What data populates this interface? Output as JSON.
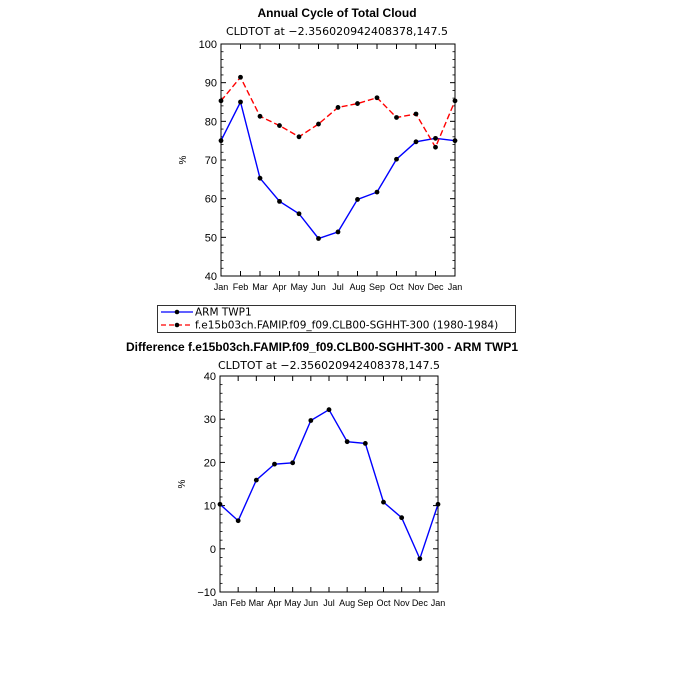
{
  "chart_data": [
    {
      "type": "line",
      "title": "Annual Cycle of Total Cloud",
      "subtitle": "CLDTOT at −2.356020942408378,147.5",
      "ylabel": "%",
      "ylim": [
        40,
        100
      ],
      "yticks": [
        40,
        50,
        60,
        70,
        80,
        90,
        100
      ],
      "categories": [
        "Jan",
        "Feb",
        "Mar",
        "Apr",
        "May",
        "Jun",
        "Jul",
        "Aug",
        "Sep",
        "Oct",
        "Nov",
        "Dec",
        "Jan"
      ],
      "series": [
        {
          "name": "ARM TWP1",
          "color": "#0000ff",
          "dash": "solid",
          "values": [
            75.0,
            85.0,
            65.3,
            59.3,
            56.1,
            49.7,
            51.4,
            59.8,
            61.7,
            70.2,
            74.7,
            75.6,
            75.0
          ]
        },
        {
          "name": "f.e15b03ch.FAMIP.f09_f09.CLB00-SGHHT-300 (1980-1984)",
          "color": "#ff0000",
          "dash": "dashed",
          "values": [
            85.3,
            91.4,
            81.3,
            78.9,
            76.0,
            79.3,
            83.6,
            84.6,
            86.1,
            81.0,
            81.9,
            73.3,
            85.3
          ]
        }
      ],
      "legend": [
        "ARM TWP1",
        "f.e15b03ch.FAMIP.f09_f09.CLB00-SGHHT-300 (1980-1984)"
      ]
    },
    {
      "type": "line",
      "title": "Difference f.e15b03ch.FAMIP.f09_f09.CLB00-SGHHT-300 - ARM TWP1",
      "subtitle": "CLDTOT at −2.356020942408378,147.5",
      "ylabel": "%",
      "ylim": [
        -10,
        40
      ],
      "yticks": [
        -10,
        0,
        10,
        20,
        30,
        40
      ],
      "ytick_labels": [
        "−10",
        "0",
        "10",
        "20",
        "30",
        "40"
      ],
      "categories": [
        "Jan",
        "Feb",
        "Mar",
        "Apr",
        "May",
        "Jun",
        "Jul",
        "Aug",
        "Sep",
        "Oct",
        "Nov",
        "Dec",
        "Jan"
      ],
      "series": [
        {
          "name": "Difference",
          "color": "#0000ff",
          "dash": "solid",
          "values": [
            10.3,
            6.5,
            15.9,
            19.6,
            19.9,
            29.7,
            32.2,
            24.8,
            24.4,
            10.8,
            7.2,
            -2.3,
            10.3
          ]
        }
      ]
    }
  ]
}
